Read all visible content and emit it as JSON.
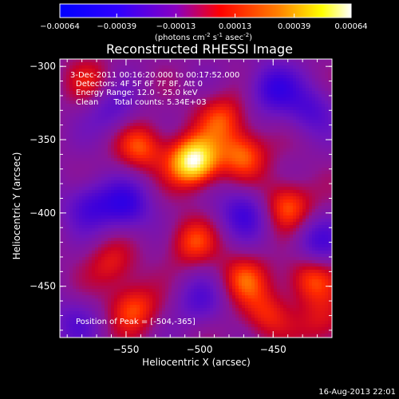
{
  "chart_data": {
    "type": "heatmap",
    "title": "Reconstructed RHESSI Image",
    "xlabel": "Heliocentric X (arcsec)",
    "ylabel": "Heliocentric Y (arcsec)",
    "xlim": [
      -595,
      -410
    ],
    "ylim": [
      -485,
      -295
    ],
    "x_ticks": [
      -550,
      -500,
      -450
    ],
    "y_ticks": [
      -300,
      -350,
      -400,
      -450
    ],
    "colorbar": {
      "range": [
        -0.00064,
        0.00064
      ],
      "tick_values": [
        -0.00064,
        -0.00039,
        -0.00013,
        0.00013,
        0.00039,
        0.00064
      ],
      "tick_labels": [
        "-0.00064",
        "-0.00039",
        "-0.00013",
        "0.00013",
        "0.00039",
        "0.00064"
      ],
      "units_text": "(photons cm",
      "units_exp1": "-2",
      "units_mid": " s",
      "units_exp2": "-1",
      "units_end": " asec",
      "units_exp3": "-2",
      "units_close": ")",
      "colors": [
        "#0000ff",
        "#6a00ff",
        "#ff0000",
        "#ffff00",
        "#ffffff"
      ]
    },
    "annotations": {
      "time_range": "3-Dec-2011 00:16:20.000 to 00:17:52.000",
      "detectors": "Detectors: 4F 5F 6F 7F 8F, Att 0",
      "energy": "Energy Range: 12.0 - 25.0 keV",
      "clean": "Clean      Total counts: 5.34E+03",
      "peak": "Position of Peak = [-504,-365]"
    },
    "peak_position": [
      -504,
      -365
    ],
    "sources": [
      {
        "x": -504,
        "y": -365,
        "amp": 1.0
      },
      {
        "x": -470,
        "y": -360,
        "amp": 0.55
      },
      {
        "x": -540,
        "y": -355,
        "amp": 0.5
      },
      {
        "x": -485,
        "y": -335,
        "amp": 0.45
      },
      {
        "x": -440,
        "y": -395,
        "amp": 0.55
      },
      {
        "x": -425,
        "y": -445,
        "amp": 0.5
      },
      {
        "x": -505,
        "y": -420,
        "amp": 0.45
      },
      {
        "x": -545,
        "y": -465,
        "amp": 0.5
      },
      {
        "x": -470,
        "y": -445,
        "amp": 0.45
      },
      {
        "x": -575,
        "y": -310,
        "amp": 0.3
      },
      {
        "x": -560,
        "y": -435,
        "amp": 0.35
      },
      {
        "x": -455,
        "y": -470,
        "amp": 0.4
      },
      {
        "x": -415,
        "y": -475,
        "amp": 0.35
      },
      {
        "x": -575,
        "y": -395,
        "amp": -0.45
      },
      {
        "x": -550,
        "y": -395,
        "amp": -0.55
      },
      {
        "x": -470,
        "y": -400,
        "amp": -0.5
      },
      {
        "x": -450,
        "y": -315,
        "amp": -0.55
      },
      {
        "x": -420,
        "y": -420,
        "amp": -0.45
      },
      {
        "x": -560,
        "y": -330,
        "amp": -0.35
      },
      {
        "x": -500,
        "y": -460,
        "amp": -0.35
      },
      {
        "x": -425,
        "y": -330,
        "amp": -0.4
      },
      {
        "x": -585,
        "y": -475,
        "amp": -0.3
      }
    ]
  },
  "footer": {
    "timestamp": "16-Aug-2013 22:01"
  }
}
